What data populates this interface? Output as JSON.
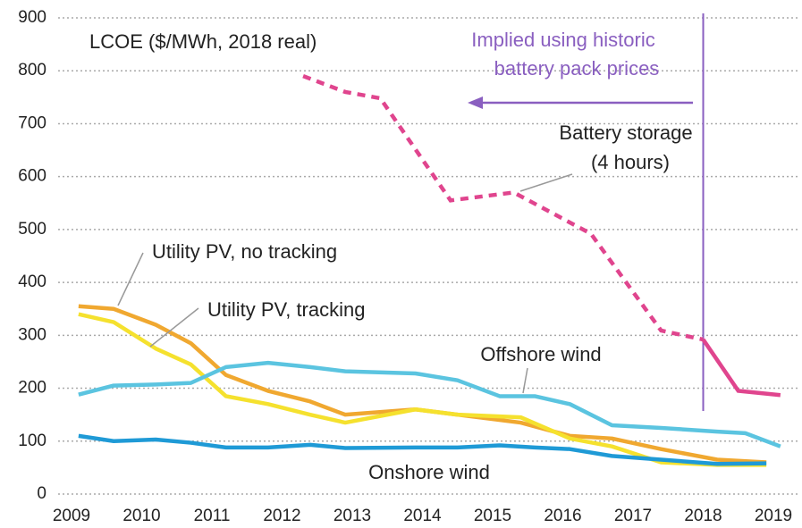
{
  "chart_data": {
    "type": "line",
    "title": "LCOE ($/MWh, 2018 real)",
    "xlim": [
      2009,
      2019
    ],
    "xticks": [
      2009,
      2010,
      2011,
      2012,
      2013,
      2014,
      2015,
      2016,
      2017,
      2018,
      2019
    ],
    "ylim": [
      0,
      900
    ],
    "yticks": [
      0,
      100,
      200,
      300,
      400,
      500,
      600,
      700,
      800,
      900
    ],
    "grid": true,
    "divider_x": 2018,
    "divider_color": "#8a5fc0",
    "divider_note": [
      "Implied using historic",
      "battery pack prices"
    ],
    "series": [
      {
        "name": "Battery storage (4 hours)",
        "label": [
          "Battery storage",
          "(4 hours)"
        ],
        "color": "#e0458e",
        "x": [
          2012.3,
          2012.9,
          2013.4,
          2014.4,
          2015.3,
          2016.4,
          2017.4,
          2018.0,
          2018.5,
          2019.1
        ],
        "values": [
          790,
          760,
          748,
          555,
          570,
          492,
          309,
          292,
          195,
          187
        ]
      },
      {
        "name": "Utility PV, no tracking",
        "color": "#f0a830",
        "x": [
          2009.1,
          2009.6,
          2010.2,
          2010.7,
          2011.2,
          2011.8,
          2012.4,
          2012.9,
          2013.9,
          2014.5,
          2015.4,
          2016.1,
          2016.7,
          2017.4,
          2018.2,
          2018.9
        ],
        "values": [
          355,
          350,
          320,
          285,
          225,
          195,
          175,
          150,
          160,
          150,
          135,
          110,
          105,
          85,
          65,
          60
        ]
      },
      {
        "name": "Utility PV, tracking",
        "color": "#f5e12e",
        "x": [
          2009.1,
          2009.6,
          2010.2,
          2010.7,
          2011.2,
          2011.8,
          2012.4,
          2012.9,
          2013.9,
          2014.5,
          2015.4,
          2016.1,
          2016.7,
          2017.4,
          2018.2,
          2018.9
        ],
        "values": [
          340,
          325,
          275,
          245,
          185,
          170,
          150,
          135,
          160,
          150,
          145,
          105,
          90,
          60,
          55,
          55
        ]
      },
      {
        "name": "Offshore wind",
        "color": "#5bc4e0",
        "x": [
          2009.1,
          2009.6,
          2010.2,
          2010.7,
          2011.2,
          2011.8,
          2012.4,
          2012.9,
          2013.9,
          2014.5,
          2015.1,
          2015.6,
          2016.1,
          2016.7,
          2017.4,
          2018.2,
          2018.6,
          2019.1
        ],
        "values": [
          188,
          205,
          207,
          210,
          240,
          248,
          240,
          232,
          228,
          215,
          185,
          185,
          170,
          130,
          125,
          118,
          115,
          90
        ]
      },
      {
        "name": "Onshore wind",
        "color": "#1f9ad6",
        "x": [
          2009.1,
          2009.6,
          2010.2,
          2010.7,
          2011.2,
          2011.8,
          2012.4,
          2012.9,
          2013.9,
          2014.5,
          2015.1,
          2015.6,
          2016.1,
          2016.7,
          2017.4,
          2018.2,
          2018.9
        ],
        "values": [
          110,
          100,
          103,
          97,
          88,
          88,
          93,
          87,
          88,
          88,
          92,
          88,
          85,
          72,
          65,
          57,
          58
        ]
      }
    ]
  }
}
